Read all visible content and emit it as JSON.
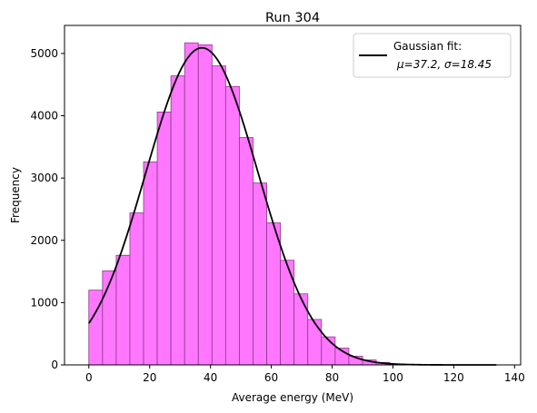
{
  "chart_data": {
    "type": "bar",
    "title": "Run 304",
    "xlabel": "Average energy (MeV)",
    "ylabel": "Frequency",
    "xlim": [
      -8,
      142
    ],
    "ylim": [
      0,
      5450
    ],
    "xticks": [
      0,
      20,
      40,
      60,
      80,
      100,
      120,
      140
    ],
    "yticks": [
      0,
      1000,
      2000,
      3000,
      4000,
      5000
    ],
    "grid": false,
    "legend_position": "top-right",
    "bar_color": "#ff77ff",
    "bar_edge_color": "#8a3a8a",
    "bin_width": 4.5,
    "bin_edges_start": 0,
    "histogram": [
      1200,
      1510,
      1760,
      2440,
      3260,
      4060,
      4640,
      5170,
      5140,
      4800,
      4470,
      3650,
      2920,
      2280,
      1680,
      1140,
      730,
      450,
      270,
      140,
      80,
      40
    ],
    "fit": {
      "label_line1": "Gaussian fit:",
      "label_line2": "μ=37.2, σ=18.45",
      "mu": 37.2,
      "sigma": 18.45,
      "amplitude": 5090,
      "x_range": [
        0,
        134
      ],
      "color": "#000000"
    }
  }
}
